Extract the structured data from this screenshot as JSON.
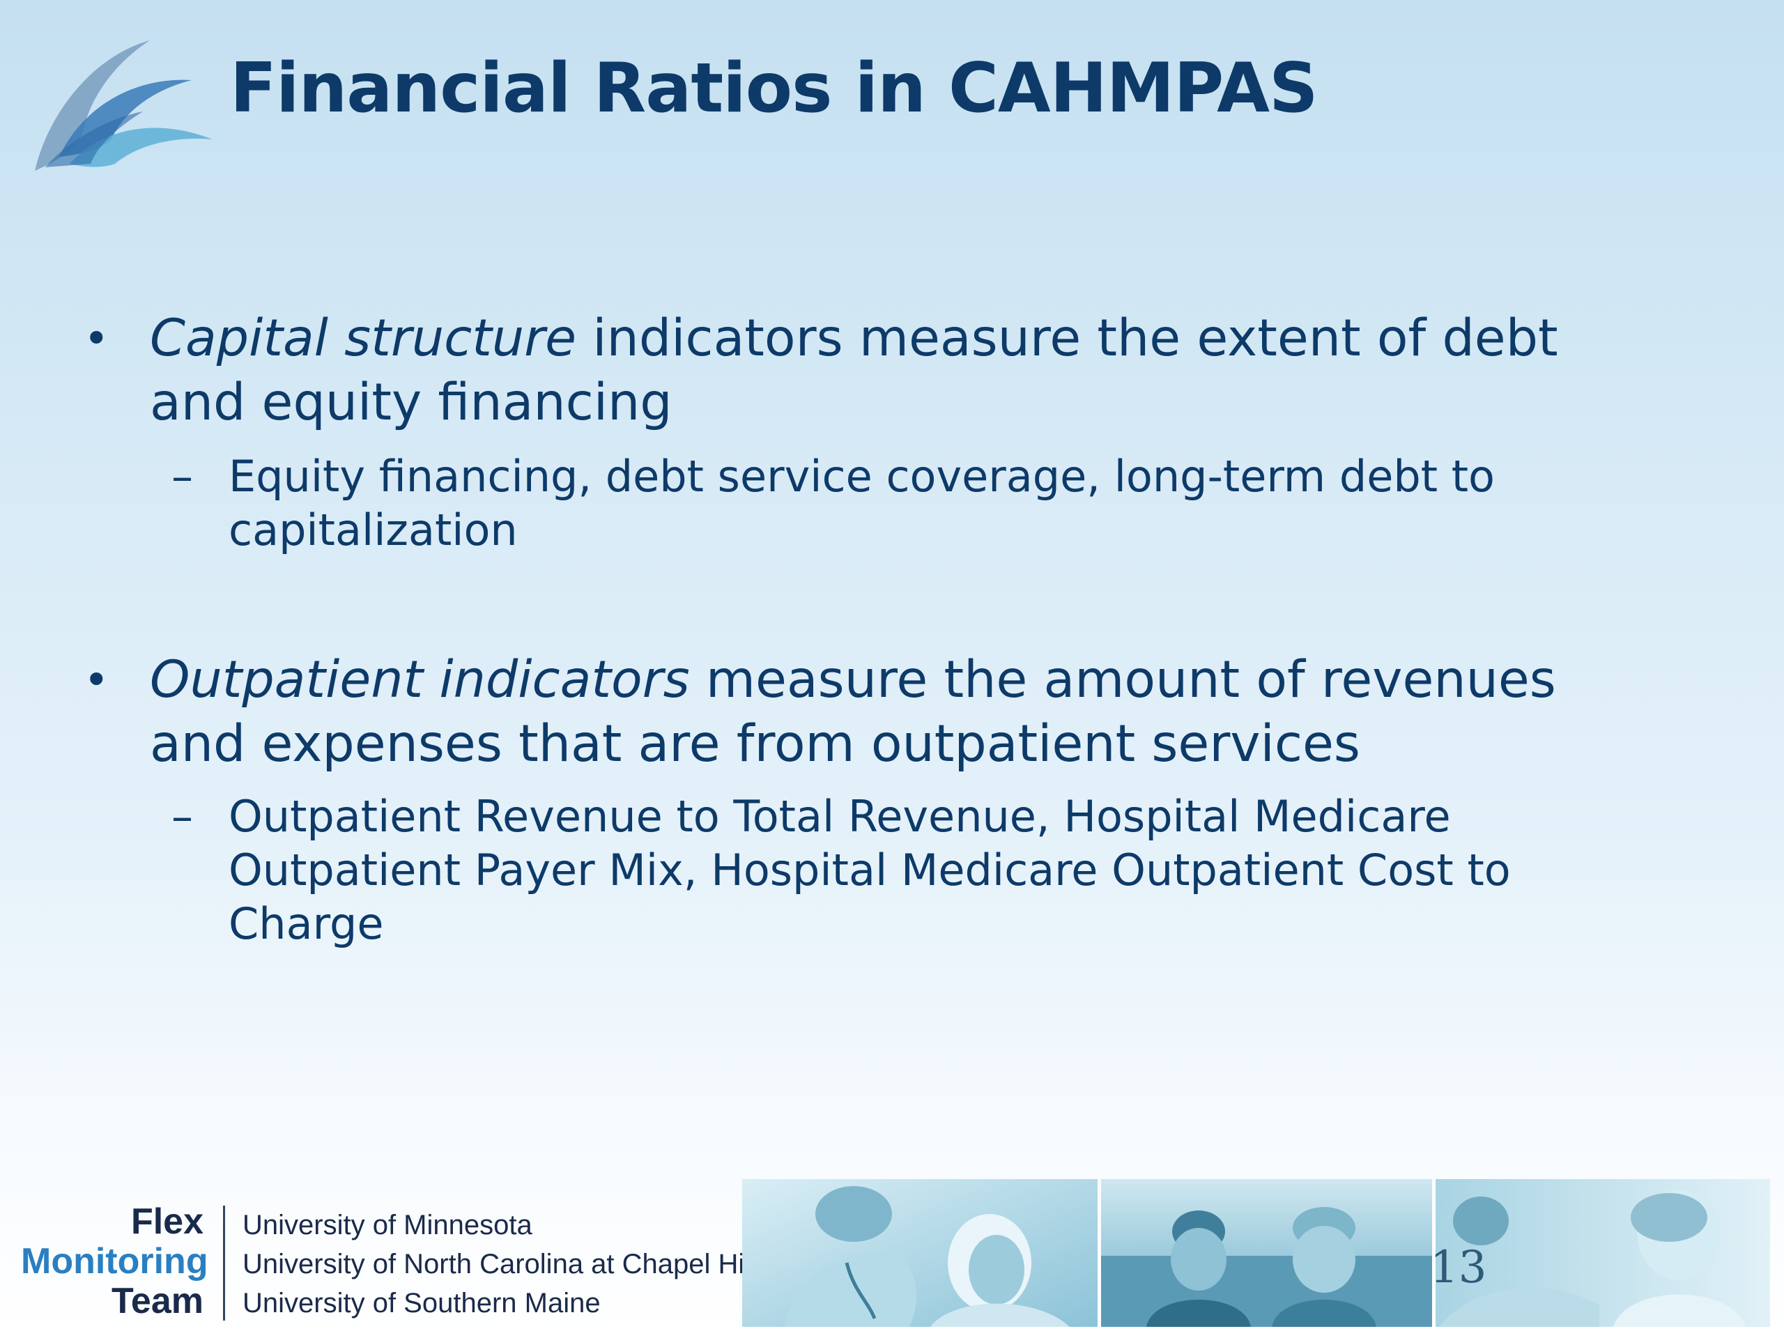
{
  "slide": {
    "title": "Financial Ratios in CAHMPAS",
    "page_number": "13"
  },
  "bullets": [
    {
      "lead_italic": "Capital structure",
      "line1_rest": " indicators measure the extent of debt",
      "line2": "and equity financing",
      "sub_line1": "Equity financing, debt service coverage, long-term debt to",
      "sub_line2": "capitalization"
    },
    {
      "lead_italic": "Outpatient indicators",
      "line1_rest": " measure the amount of revenues",
      "line2": "and expenses that are from outpatient services",
      "sub_line1": "Outpatient Revenue to Total Revenue, Hospital Medicare",
      "sub_line2": "Outpatient Payer Mix, Hospital Medicare Outpatient Cost to",
      "sub_line3": "Charge"
    }
  ],
  "footer": {
    "logo_line1": "Flex",
    "logo_line2": "Monitoring",
    "logo_line3": "Team",
    "universities": [
      "University of Minnesota",
      "University of North Carolina at Chapel Hill",
      "University of Southern Maine"
    ]
  },
  "colors": {
    "title": "#0d3a68",
    "body_text": "#0d3a68",
    "monitoring_blue": "#2a7fc1",
    "photo_tint": "#5aa6c4"
  }
}
